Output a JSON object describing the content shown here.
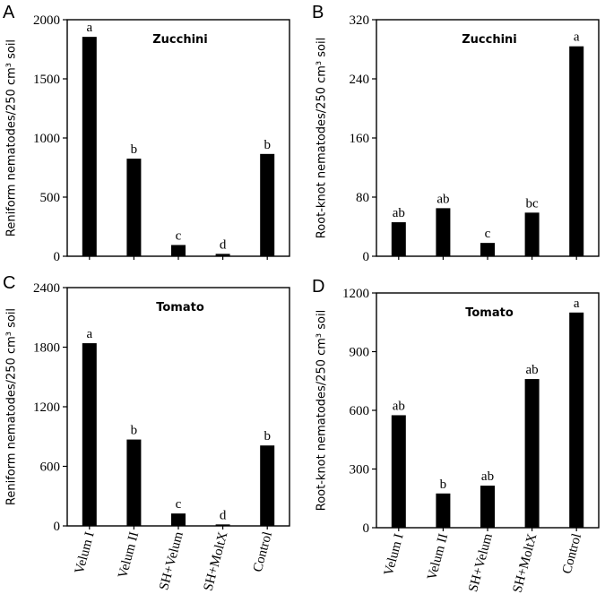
{
  "chart_data": [
    {
      "type": "bar",
      "panel": "A",
      "title": "Zucchini",
      "ylabel": "Reniform nematodes/250 cm³ soil",
      "ylim": [
        0,
        2000
      ],
      "yticks": [
        0,
        500,
        1000,
        1500,
        2000
      ],
      "categories": [
        "Velum I",
        "Velum II",
        "SH+Velum",
        "SH+MoltX",
        "Control"
      ],
      "values": [
        1855,
        825,
        95,
        20,
        865
      ],
      "letters": [
        "a",
        "b",
        "c",
        "d",
        "b"
      ],
      "show_xticklabels": false
    },
    {
      "type": "bar",
      "panel": "B",
      "title": "Zucchini",
      "ylabel": "Root-knot nematodes/250 cm³ soil",
      "ylim": [
        0,
        320
      ],
      "yticks": [
        0,
        80,
        160,
        240,
        320
      ],
      "categories": [
        "Velum I",
        "Velum II",
        "SH+Velum",
        "SH+MoltX",
        "Control"
      ],
      "values": [
        46,
        65,
        18,
        59,
        284
      ],
      "letters": [
        "ab",
        "ab",
        "c",
        "bc",
        "a"
      ],
      "show_xticklabels": false
    },
    {
      "type": "bar",
      "panel": "C",
      "title": "Tomato",
      "ylabel": "Reniform nematodes/250 cm³ soil",
      "ylim": [
        0,
        2400
      ],
      "yticks": [
        0,
        600,
        1200,
        1800,
        2400
      ],
      "categories": [
        "Velum I",
        "Velum II",
        "SH+Velum",
        "SH+MoltX",
        "Control"
      ],
      "values": [
        1840,
        870,
        125,
        15,
        810
      ],
      "letters": [
        "a",
        "b",
        "c",
        "d",
        "b"
      ],
      "show_xticklabels": true
    },
    {
      "type": "bar",
      "panel": "D",
      "title": "Tomato",
      "ylabel": "Root-knot nematodes/250 cm³ soil",
      "ylim": [
        0,
        1200
      ],
      "yticks": [
        0,
        300,
        600,
        900,
        1200
      ],
      "categories": [
        "Velum I",
        "Velum II",
        "SH+Velum",
        "SH+MoltX",
        "Control"
      ],
      "values": [
        575,
        175,
        215,
        760,
        1100
      ],
      "letters": [
        "ab",
        "b",
        "ab",
        "ab",
        "a"
      ],
      "show_xticklabels": true
    }
  ],
  "colors": {
    "bar": "#000000",
    "axis": "#000000"
  }
}
